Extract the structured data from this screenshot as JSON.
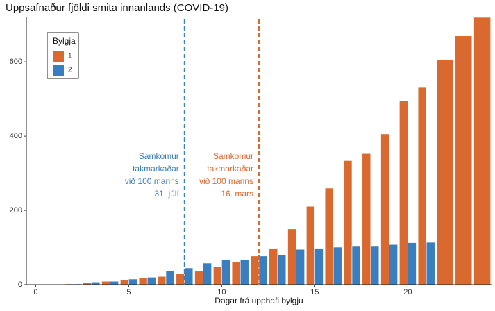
{
  "chart_data": {
    "type": "bar",
    "title": "Uppsafnaður fjöldi smita innanlands (COVID-19)",
    "x_label": "Dagar frá upphafi bylgju",
    "x": [
      0,
      1,
      2,
      3,
      4,
      5,
      6,
      7,
      8,
      9,
      10,
      11,
      12,
      13,
      14,
      15,
      16,
      17,
      18,
      19,
      20,
      21,
      22,
      23,
      24
    ],
    "series": [
      {
        "name": "1",
        "color": "#d9692f",
        "values": [
          0,
          1,
          2,
          6,
          9,
          12,
          19,
          22,
          29,
          36,
          49,
          61,
          77,
          98,
          150,
          211,
          260,
          334,
          353,
          406,
          495,
          531,
          605,
          670,
          720
        ]
      },
      {
        "name": "2",
        "color": "#3a7ebf",
        "values": [
          0,
          1,
          2,
          7,
          9,
          15,
          20,
          38,
          45,
          58,
          66,
          68,
          77,
          80,
          95,
          98,
          101,
          103,
          103,
          108,
          113,
          114,
          null,
          null,
          null
        ]
      }
    ],
    "xlim": [
      -0.5,
      24.5
    ],
    "xticks": [
      0,
      5,
      10,
      15,
      20
    ],
    "ylim": [
      0,
      720
    ],
    "yticks": [
      0,
      200,
      400,
      600
    ],
    "legend_title": "Bylgja",
    "legend_position": "top-left",
    "annotations": [
      {
        "x": 8,
        "color": "#3a7ebf",
        "lines": [
          "Samkomur",
          "takmarkaðar",
          "við 100 manns",
          "31. júlí"
        ]
      },
      {
        "x": 12,
        "color": "#d9692f",
        "lines": [
          "Samkomur",
          "takmarkaðar",
          "við 100 manns",
          "16. mars"
        ]
      }
    ]
  }
}
